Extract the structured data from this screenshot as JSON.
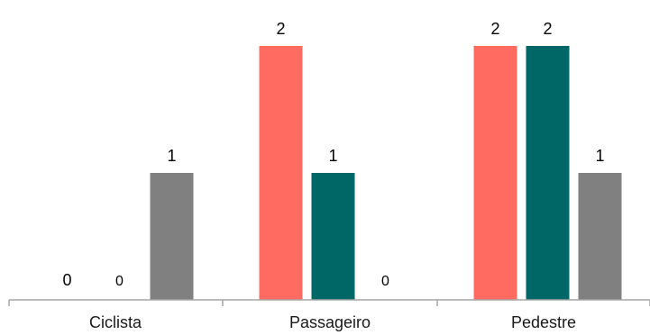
{
  "chart_data": {
    "type": "bar",
    "categories": [
      "Ciclista",
      "Passageiro",
      "Pedestre"
    ],
    "series": [
      {
        "values": [
          0,
          2,
          2
        ],
        "color": "#FF6B61"
      },
      {
        "values": [
          0,
          1,
          2
        ],
        "color": "#006666"
      },
      {
        "values": [
          1,
          0,
          1
        ],
        "color": "#808080"
      }
    ],
    "data_labels": [
      [
        "0",
        "2",
        "2"
      ],
      [
        "0",
        "1",
        "2"
      ],
      [
        "1",
        "0",
        "1"
      ]
    ],
    "ylim": [
      0,
      2
    ],
    "grid": false,
    "legend": "none",
    "axis_color": "#A6A6A6"
  }
}
